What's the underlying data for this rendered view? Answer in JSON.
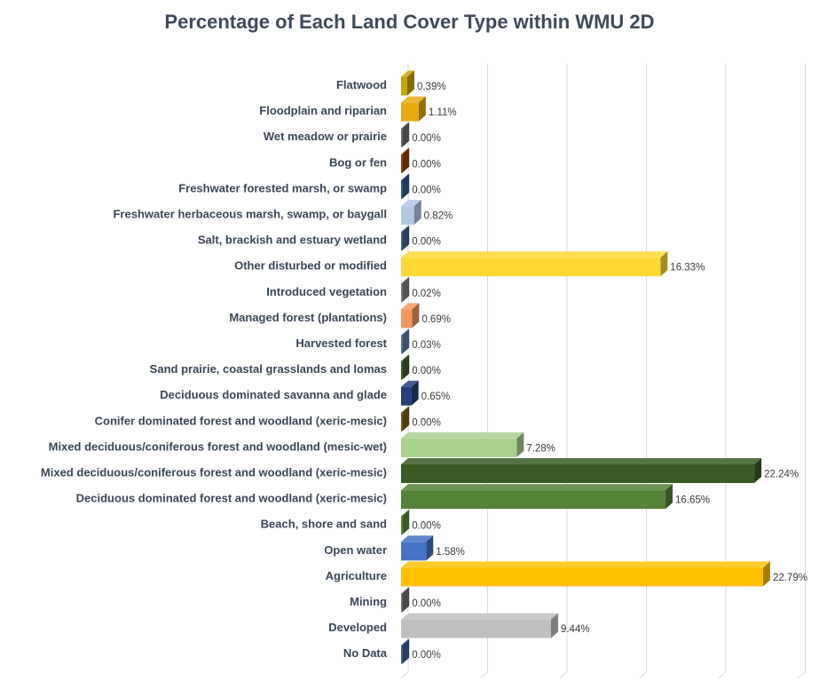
{
  "chart_data": {
    "type": "bar",
    "orientation": "horizontal",
    "style": "3d",
    "title": "Percentage of Each Land Cover Type within WMU 2D",
    "xlabel": "",
    "ylabel": "",
    "xlim": [
      0,
      25
    ],
    "grid": true,
    "legend": "none",
    "categories": [
      "Flatwood",
      "Floodplain and riparian",
      "Wet meadow or prairie",
      "Bog or fen",
      "Freshwater forested  marsh, or swamp",
      "Freshwater herbaceous marsh, swamp, or baygall",
      "Salt, brackish and estuary wetland",
      "Other disturbed or modified",
      "Introduced vegetation",
      "Managed forest (plantations)",
      "Harvested forest",
      "Sand prairie, coastal grasslands and lomas",
      "Deciduous dominated savanna and glade",
      "Conifer dominated forest and woodland (xeric-mesic)",
      "Mixed deciduous/coniferous forest and woodland (mesic-wet)",
      "Mixed deciduous/coniferous forest and woodland  (xeric-mesic)",
      "Deciduous dominated forest and woodland (xeric-mesic)",
      "Beach, shore and sand",
      "Open water",
      "Agriculture",
      "Mining",
      "Developed",
      "No Data"
    ],
    "values": [
      0.39,
      1.11,
      0.0,
      0.0,
      0.0,
      0.82,
      0.0,
      16.33,
      0.02,
      0.69,
      0.03,
      0.0,
      0.65,
      0.0,
      7.28,
      22.24,
      16.65,
      0.0,
      1.58,
      22.79,
      0.0,
      9.44,
      0.0
    ],
    "labels": [
      "0.39%",
      "1.11%",
      "0.00%",
      "0.00%",
      "0.00%",
      "0.82%",
      "0.00%",
      "16.33%",
      "0.02%",
      "0.69%",
      "0.03%",
      "0.00%",
      "0.65%",
      "0.00%",
      "7.28%",
      "22.24%",
      "16.65%",
      "0.00%",
      "1.58%",
      "22.79%",
      "0.00%",
      "9.44%",
      "0.00%"
    ],
    "colors": [
      "#c9a400",
      "#e6a910",
      "#6b6b6b",
      "#9c3f0d",
      "#2e5b8a",
      "#b4c6e7",
      "#3e5f94",
      "#ffd933",
      "#7f7f7f",
      "#f4965a",
      "#5779a8",
      "#3d5a25",
      "#263f7a",
      "#7a5a12",
      "#a8d08d",
      "#375b23",
      "#548235",
      "#5a8a32",
      "#4472c4",
      "#ffc000",
      "#707070",
      "#bfbfbf",
      "#3a5f93"
    ]
  }
}
